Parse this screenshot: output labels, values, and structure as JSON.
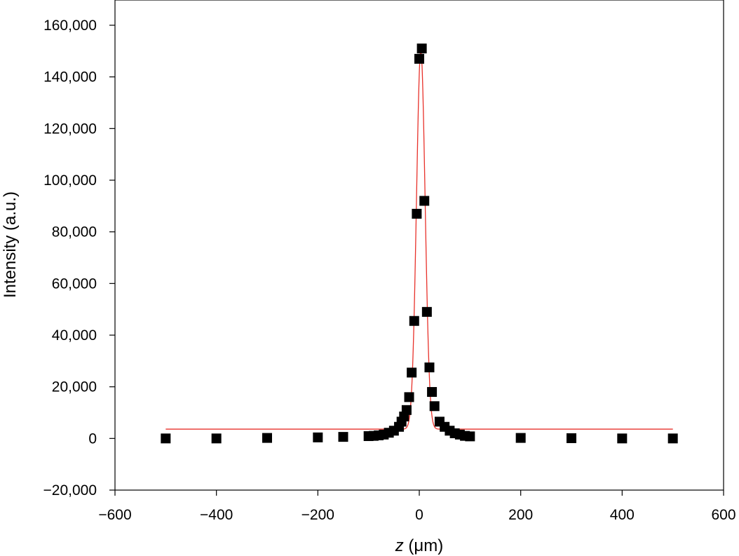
{
  "chart_data": {
    "type": "scatter",
    "title": "",
    "xlabel": {
      "italic": "z",
      "rest": " (μm)"
    },
    "ylabel": "Intensity (a.u.)",
    "xlim": [
      -600,
      600
    ],
    "ylim": [
      -20000,
      170000
    ],
    "x_ticks": [
      -600,
      -400,
      -200,
      0,
      200,
      400,
      600
    ],
    "x_tick_labels": [
      "−600",
      "−400",
      "−200",
      "0",
      "200",
      "400",
      "600"
    ],
    "y_ticks": [
      -20000,
      0,
      20000,
      40000,
      60000,
      80000,
      100000,
      120000,
      140000,
      160000
    ],
    "y_tick_labels": [
      "−20,000",
      "0",
      "20,000",
      "40,000",
      "60,000",
      "80,000",
      "100,000",
      "120,000",
      "140,000",
      "160,000"
    ],
    "grid": false,
    "series": [
      {
        "kind": "points",
        "marker": "square",
        "color": "#000000",
        "points": [
          [
            -500,
            0
          ],
          [
            -400,
            0
          ],
          [
            -300,
            200
          ],
          [
            -200,
            400
          ],
          [
            -150,
            600
          ],
          [
            -100,
            900
          ],
          [
            -90,
            1000
          ],
          [
            -80,
            1200
          ],
          [
            -70,
            1500
          ],
          [
            -60,
            2200
          ],
          [
            -50,
            3000
          ],
          [
            -40,
            4500
          ],
          [
            -35,
            6500
          ],
          [
            -30,
            8500
          ],
          [
            -25,
            11000
          ],
          [
            -20,
            16000
          ],
          [
            -15,
            25500
          ],
          [
            -10,
            45500
          ],
          [
            -5,
            87000
          ],
          [
            0,
            147000
          ],
          [
            5,
            151000
          ],
          [
            10,
            92000
          ],
          [
            15,
            49000
          ],
          [
            20,
            27500
          ],
          [
            25,
            18000
          ],
          [
            30,
            12500
          ],
          [
            40,
            6500
          ],
          [
            50,
            4500
          ],
          [
            60,
            3000
          ],
          [
            70,
            2000
          ],
          [
            80,
            1500
          ],
          [
            90,
            1000
          ],
          [
            100,
            800
          ],
          [
            200,
            200
          ],
          [
            300,
            100
          ],
          [
            400,
            0
          ],
          [
            500,
            0
          ]
        ]
      },
      {
        "kind": "fit-line",
        "color": "#e8312a",
        "model": "gaussian",
        "baseline": 3600,
        "amplitude": 146600,
        "center": 3,
        "sigma": 8.5,
        "x_range": [
          -500,
          500
        ]
      }
    ]
  }
}
